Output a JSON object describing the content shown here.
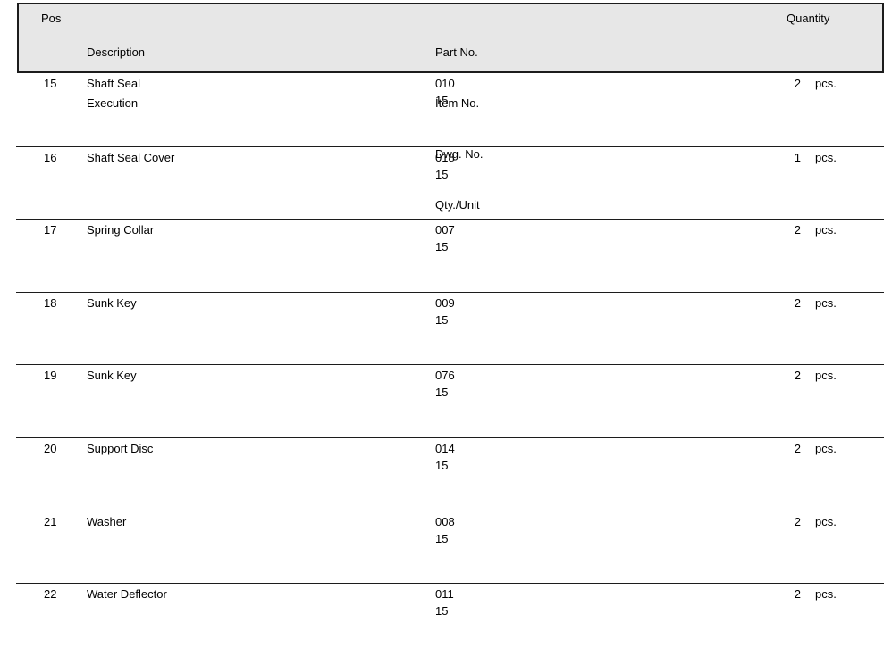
{
  "colors": {
    "header_bg": "#e7e7e7",
    "line": "#1c1c1c",
    "text": "#000000"
  },
  "table": {
    "header": {
      "pos": "Pos",
      "description_lines": [
        "Description",
        "Execution"
      ],
      "part_lines": [
        "Part No.",
        "Item No.",
        "Dwg. No.",
        "Qty./Unit"
      ],
      "quantity": "Quantity"
    },
    "rows": [
      {
        "pos": "15",
        "description": "Shaft Seal",
        "part_no": "010",
        "item_no": "15",
        "qty": "2",
        "unit": "pcs."
      },
      {
        "pos": "16",
        "description": "Shaft Seal Cover",
        "part_no": "018",
        "item_no": "15",
        "qty": "1",
        "unit": "pcs."
      },
      {
        "pos": "17",
        "description": "Spring Collar",
        "part_no": "007",
        "item_no": "15",
        "qty": "2",
        "unit": "pcs."
      },
      {
        "pos": "18",
        "description": "Sunk Key",
        "part_no": "009",
        "item_no": "15",
        "qty": "2",
        "unit": "pcs."
      },
      {
        "pos": "19",
        "description": "Sunk Key",
        "part_no": "076",
        "item_no": "15",
        "qty": "2",
        "unit": "pcs."
      },
      {
        "pos": "20",
        "description": "Support Disc",
        "part_no": "014",
        "item_no": "15",
        "qty": "2",
        "unit": "pcs."
      },
      {
        "pos": "21",
        "description": "Washer",
        "part_no": "008",
        "item_no": "15",
        "qty": "2",
        "unit": "pcs."
      },
      {
        "pos": "22",
        "description": "Water Deflector",
        "part_no": "011",
        "item_no": "15",
        "qty": "2",
        "unit": "pcs."
      }
    ]
  }
}
